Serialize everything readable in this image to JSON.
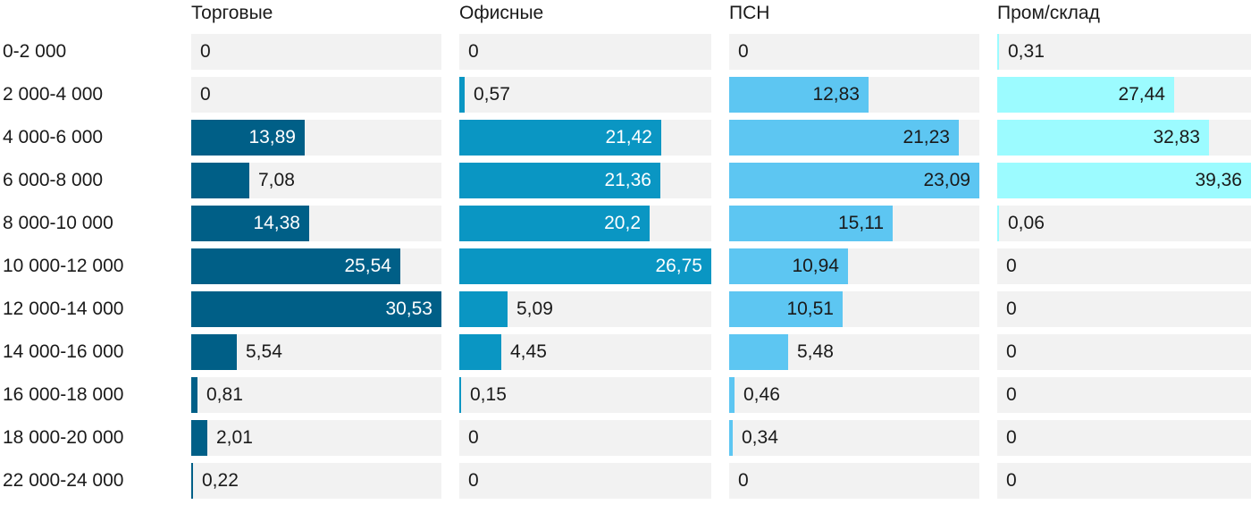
{
  "chart_data": {
    "type": "bar",
    "orientation": "horizontal",
    "layout": "small-multiples",
    "categories": [
      "0-2 000",
      "2 000-4 000",
      "4 000-6 000",
      "6 000-8 000",
      "8 000-10 000",
      "10 000-12 000",
      "12 000-14 000",
      "14 000-16 000",
      "16 000-18 000",
      "18 000-20 000",
      "22 000-24 000"
    ],
    "series": [
      {
        "name": "Торговые",
        "color": "#005f87",
        "values": [
          0,
          0,
          13.89,
          7.08,
          14.38,
          25.54,
          30.53,
          5.54,
          0.81,
          2.01,
          0.22
        ],
        "labels": [
          "0",
          "0",
          "13,89",
          "7,08",
          "14,38",
          "25,54",
          "30,53",
          "5,54",
          "0,81",
          "2,01",
          "0,22"
        ]
      },
      {
        "name": "Офисные",
        "color": "#0a96c3",
        "values": [
          0,
          0.57,
          21.42,
          21.36,
          20.2,
          26.75,
          5.09,
          4.45,
          0.15,
          0,
          0
        ],
        "labels": [
          "0",
          "0,57",
          "21,42",
          "21,36",
          "20,2",
          "26,75",
          "5,09",
          "4,45",
          "0,15",
          "0",
          "0"
        ]
      },
      {
        "name": "ПСН",
        "color": "#5dc6f2",
        "values": [
          0,
          12.83,
          21.23,
          23.09,
          15.11,
          10.94,
          10.51,
          5.48,
          0.46,
          0.34,
          0
        ],
        "labels": [
          "0",
          "12,83",
          "21,23",
          "23,09",
          "15,11",
          "10,94",
          "10,51",
          "5,48",
          "0,46",
          "0,34",
          "0"
        ]
      },
      {
        "name": "Пром/склад",
        "color": "#9cfbff",
        "values": [
          0.31,
          27.44,
          32.83,
          39.36,
          0.06,
          0,
          0,
          0,
          0,
          0,
          0
        ],
        "labels": [
          "0,31",
          "27,44",
          "32,83",
          "39,36",
          "0,06",
          "0",
          "0",
          "0",
          "0",
          "0",
          "0"
        ]
      }
    ],
    "xlim_per_panel": [
      [
        0,
        30.53
      ],
      [
        0,
        26.75
      ],
      [
        0,
        23.09
      ],
      [
        0,
        39.36
      ]
    ],
    "grid": false,
    "legend": "none"
  }
}
